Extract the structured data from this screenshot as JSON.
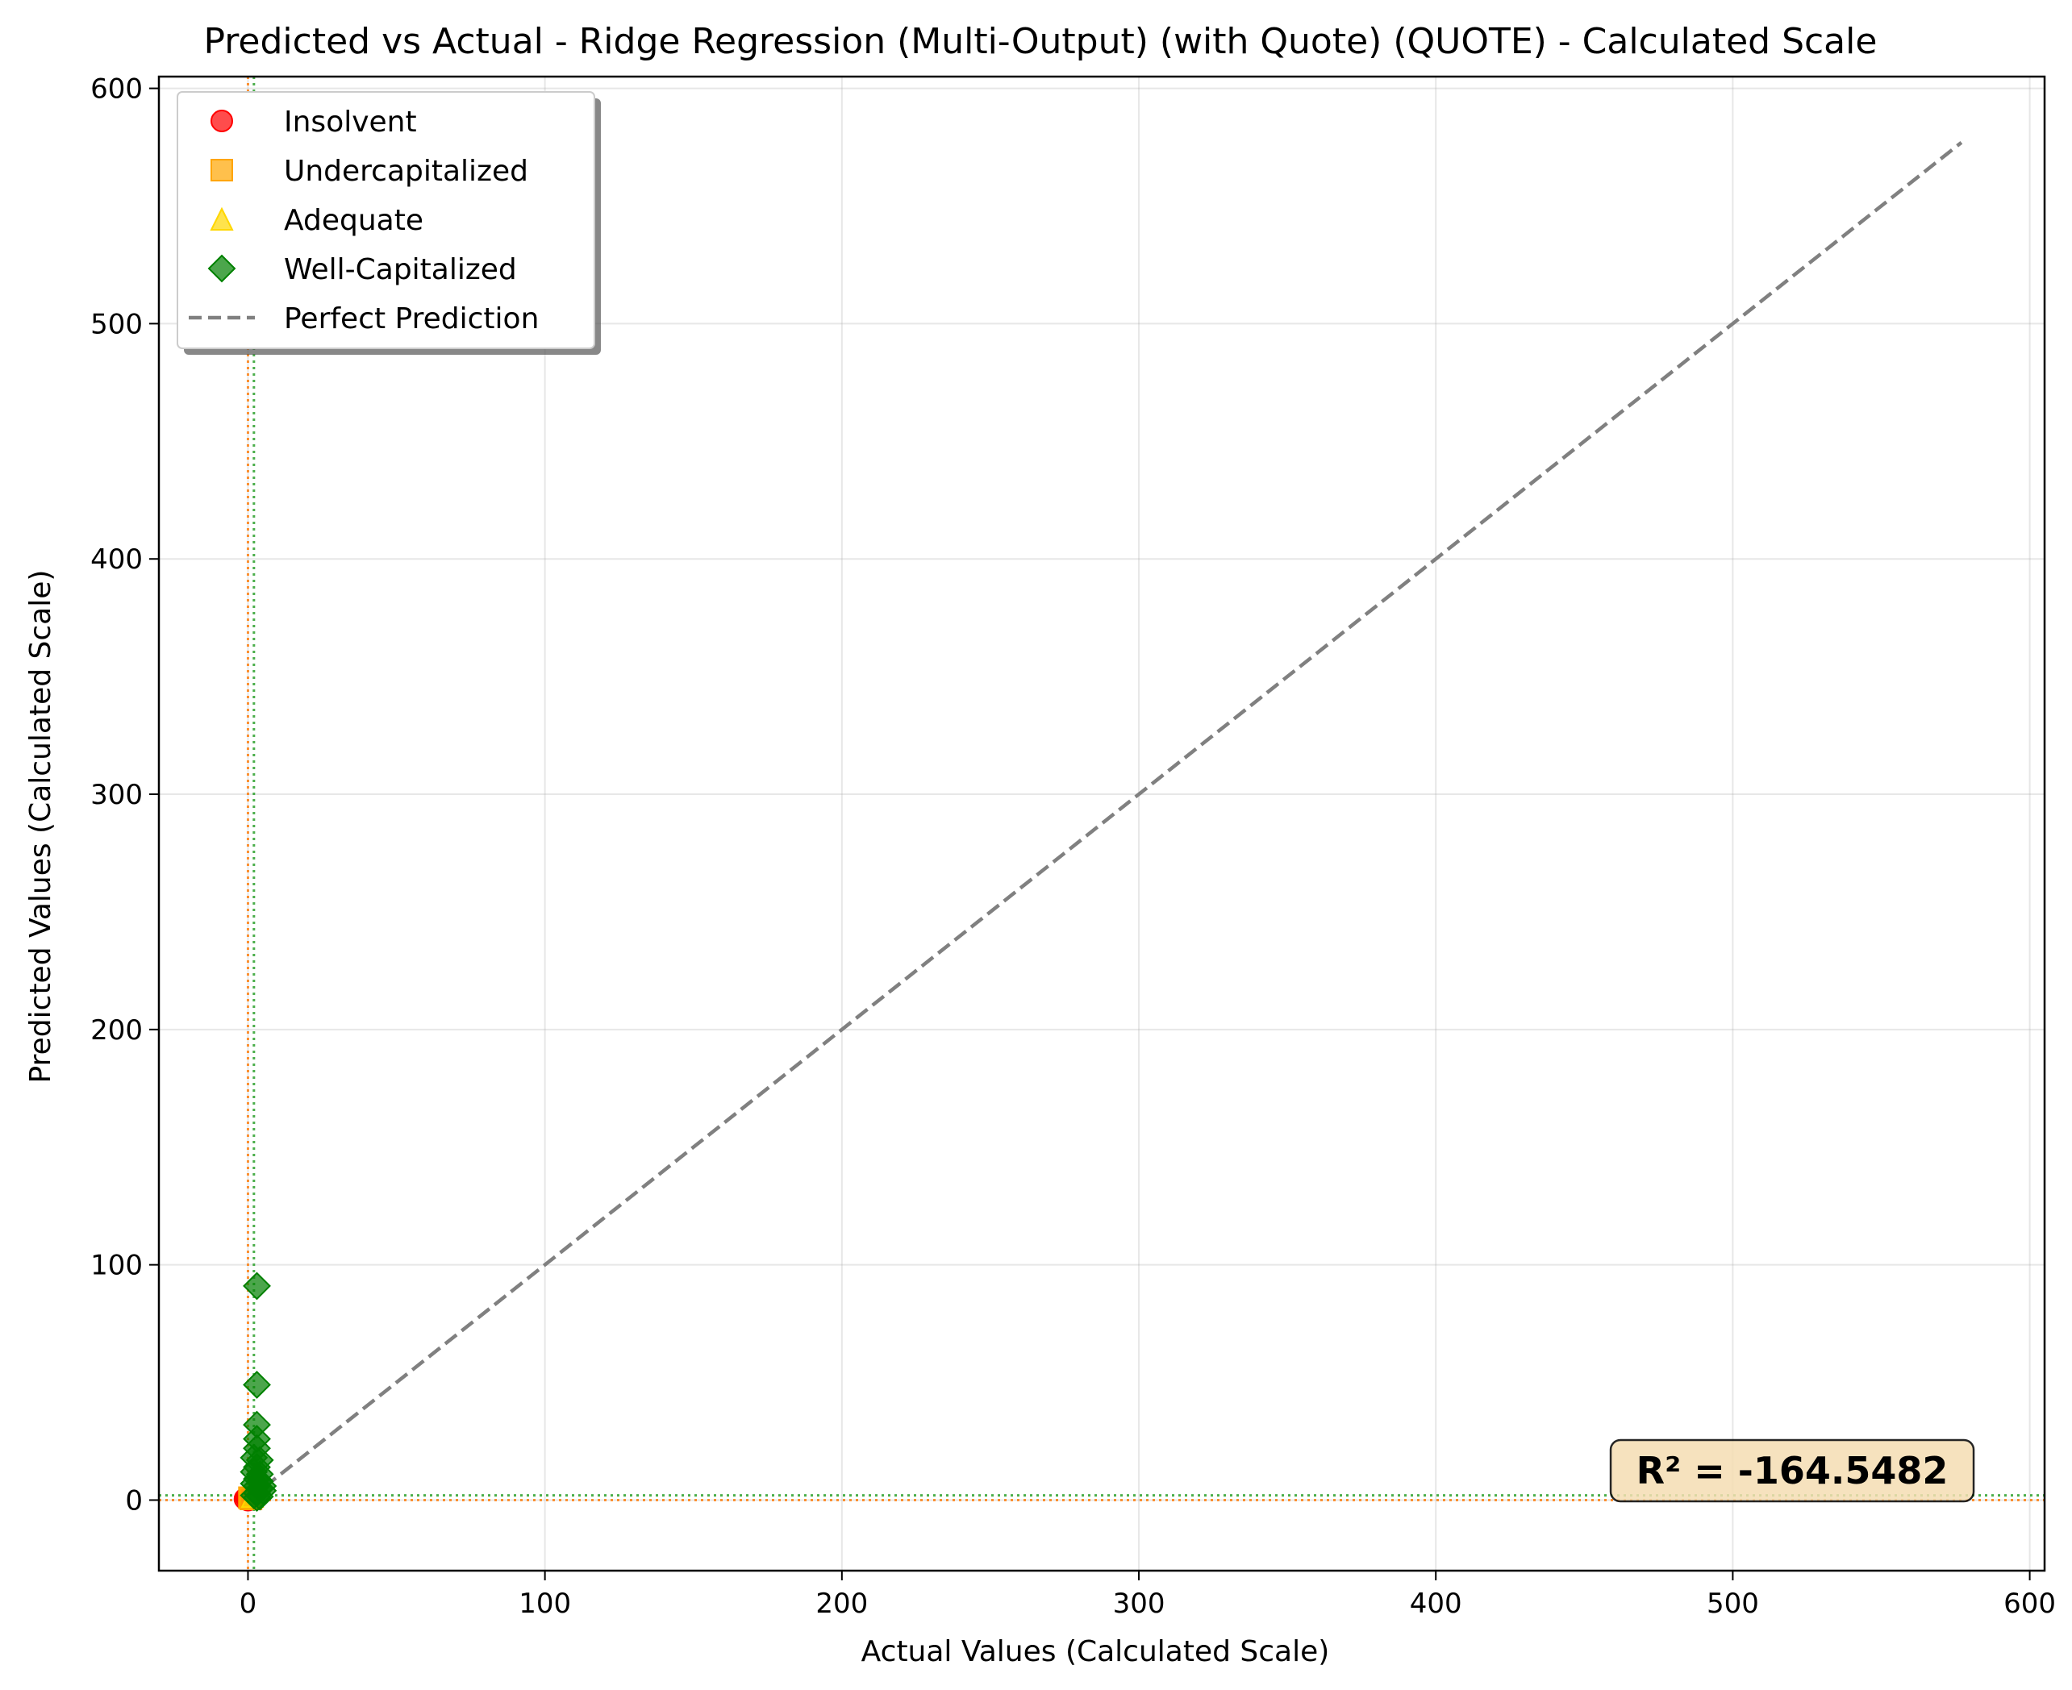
{
  "chart_data": {
    "type": "scatter",
    "title": "Predicted vs Actual - Ridge Regression (Multi-Output) (with Quote) (QUOTE) - Calculated Scale",
    "xlabel": "Actual Values (Calculated Scale)",
    "ylabel": "Predicted Values (Calculated Scale)",
    "xlim": [
      -30,
      605
    ],
    "ylim": [
      -30,
      605
    ],
    "xticks": [
      0,
      100,
      200,
      300,
      400,
      500,
      600
    ],
    "yticks": [
      0,
      100,
      200,
      300,
      400,
      500,
      600
    ],
    "grid": true,
    "legend_position": "top-left",
    "series": [
      {
        "name": "Insolvent",
        "marker": "circle",
        "color": "#ff0000",
        "points": [
          [
            -1,
            0.5
          ],
          [
            -0.5,
            1
          ],
          [
            0,
            0
          ]
        ]
      },
      {
        "name": "Undercapitalized",
        "marker": "square",
        "color": "#ffa500",
        "points": [
          [
            0.5,
            1
          ],
          [
            1,
            0.5
          ]
        ]
      },
      {
        "name": "Adequate",
        "marker": "triangle",
        "color": "#ffd700",
        "points": [
          [
            1.5,
            1.5
          ]
        ]
      },
      {
        "name": "Well-Capitalized",
        "marker": "diamond",
        "color": "#008000",
        "points": [
          [
            3,
            91
          ],
          [
            3,
            49
          ],
          [
            3,
            32
          ],
          [
            3,
            26
          ],
          [
            3,
            22
          ],
          [
            2,
            18
          ],
          [
            4,
            17
          ],
          [
            3,
            14
          ],
          [
            2,
            12
          ],
          [
            4,
            11
          ],
          [
            3,
            9
          ],
          [
            4,
            8
          ],
          [
            2,
            7
          ],
          [
            3,
            6
          ],
          [
            4,
            5
          ],
          [
            5,
            4
          ],
          [
            3,
            3
          ],
          [
            2,
            2
          ],
          [
            4,
            1.5
          ],
          [
            3,
            1
          ],
          [
            5,
            6
          ]
        ]
      }
    ],
    "perfect_prediction": {
      "name": "Perfect Prediction",
      "from": [
        0,
        0
      ],
      "to": [
        577,
        577
      ],
      "style": "dashed",
      "color": "#808080"
    },
    "reference_lines": {
      "vertical": [
        {
          "x": 0,
          "color": "#ff7f0e"
        },
        {
          "x": 2,
          "color": "#2ca02c"
        }
      ],
      "horizontal": [
        {
          "y": 0,
          "color": "#ff7f0e"
        },
        {
          "y": 2,
          "color": "#2ca02c"
        }
      ]
    },
    "annotation": {
      "text": "R² = -164.5482",
      "x": 520,
      "y": 7,
      "background": "#f5deb3"
    }
  }
}
